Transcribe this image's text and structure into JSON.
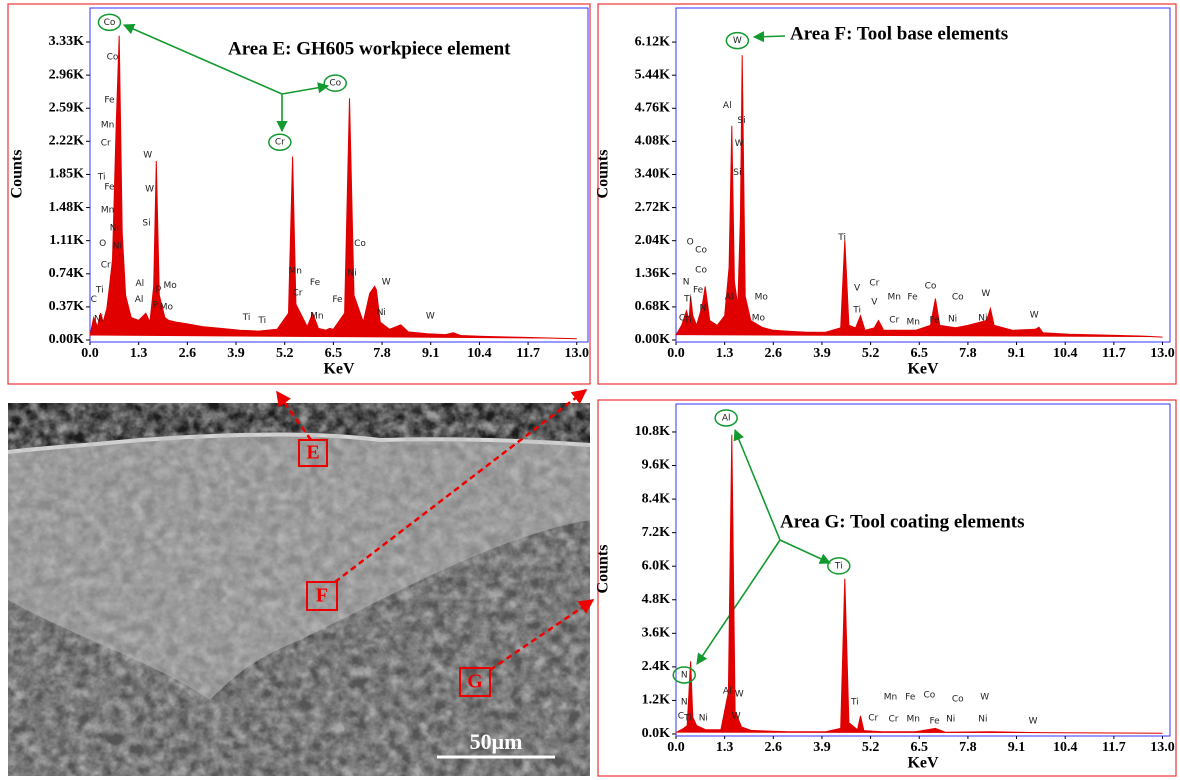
{
  "chart_data": [
    {
      "type": "area",
      "title": "Area E: GH605 workpiece element",
      "xlabel": "KeV",
      "ylabel": "Counts",
      "color": "#e00000",
      "xlim": [
        0,
        13.3
      ],
      "ylim": [
        0,
        3710
      ],
      "xticks": [
        {
          "value": 0,
          "label": "0.0"
        },
        1.3,
        2.6,
        3.9,
        5.2,
        6.5,
        7.8,
        9.1,
        10.4,
        11.7,
        {
          "value": 13,
          "label": "13.0"
        }
      ],
      "yticks": [
        {
          "value": 0,
          "label": "0.00K"
        },
        {
          "value": 370,
          "label": "0.37K"
        },
        {
          "value": 740,
          "label": "0.74K"
        },
        {
          "value": 1110,
          "label": "1.11K"
        },
        {
          "value": 1480,
          "label": "1.48K"
        },
        {
          "value": 1850,
          "label": "1.85K"
        },
        {
          "value": 2220,
          "label": "2.22K"
        },
        {
          "value": 2590,
          "label": "2.59K"
        },
        {
          "value": 2960,
          "label": "2.96K"
        },
        {
          "value": 3330,
          "label": "3.33K"
        }
      ],
      "x": [
        0,
        0.1,
        0.2,
        0.28,
        0.35,
        0.45,
        0.52,
        0.6,
        0.7,
        0.78,
        0.86,
        0.95,
        1.1,
        1.3,
        1.49,
        1.6,
        1.7,
        1.77,
        1.85,
        2.0,
        2.1,
        2.3,
        2.6,
        3.0,
        3.5,
        4.0,
        4.5,
        5.0,
        5.3,
        5.41,
        5.5,
        5.8,
        5.95,
        6.1,
        6.3,
        6.4,
        6.5,
        6.8,
        6.93,
        7.05,
        7.3,
        7.47,
        7.6,
        7.65,
        7.75,
        8.0,
        8.3,
        8.5,
        9.0,
        9.5,
        9.7,
        9.9,
        10.5,
        11.5,
        12.5,
        13.0
      ],
      "values": [
        50,
        250,
        150,
        300,
        200,
        350,
        600,
        900,
        2400,
        3400,
        1200,
        500,
        250,
        220,
        300,
        200,
        600,
        2000,
        500,
        250,
        220,
        200,
        180,
        150,
        130,
        110,
        100,
        120,
        300,
        2050,
        400,
        150,
        300,
        130,
        110,
        130,
        120,
        300,
        2700,
        500,
        200,
        520,
        600,
        560,
        200,
        120,
        170,
        90,
        70,
        60,
        80,
        50,
        40,
        30,
        20,
        15
      ],
      "annotations": [
        {
          "text": "Co",
          "x": 0.52,
          "y": 3550,
          "circled": true
        },
        {
          "text": "Co",
          "x": 0.6,
          "y": 3160
        },
        {
          "text": "Fe",
          "x": 0.52,
          "y": 2680
        },
        {
          "text": "Mn",
          "x": 0.47,
          "y": 2400
        },
        {
          "text": "Cr",
          "x": 0.42,
          "y": 2200
        },
        {
          "text": "Ti",
          "x": 0.31,
          "y": 1820
        },
        {
          "text": "Fe",
          "x": 0.52,
          "y": 1710
        },
        {
          "text": "Mn",
          "x": 0.47,
          "y": 1450
        },
        {
          "text": "Ni",
          "x": 0.65,
          "y": 1250
        },
        {
          "text": "O",
          "x": 0.34,
          "y": 1080
        },
        {
          "text": "Ni",
          "x": 0.73,
          "y": 1050
        },
        {
          "text": "Cr",
          "x": 0.42,
          "y": 840
        },
        {
          "text": "Ti",
          "x": 0.26,
          "y": 560
        },
        {
          "text": "C",
          "x": 0.1,
          "y": 450
        },
        {
          "text": "Ni",
          "x": 0.23,
          "y": 235
        },
        {
          "text": "Al",
          "x": 1.33,
          "y": 630
        },
        {
          "text": "Al",
          "x": 1.31,
          "y": 450
        },
        {
          "text": "W",
          "x": 1.54,
          "y": 2070
        },
        {
          "text": "W",
          "x": 1.59,
          "y": 1690
        },
        {
          "text": "Si",
          "x": 1.51,
          "y": 1310
        },
        {
          "text": "p",
          "x": 1.83,
          "y": 580
        },
        {
          "text": "Mo",
          "x": 2.14,
          "y": 610
        },
        {
          "text": "P",
          "x": 1.75,
          "y": 390
        },
        {
          "text": "Mo",
          "x": 2.04,
          "y": 370
        },
        {
          "text": "Ti",
          "x": 4.18,
          "y": 250
        },
        {
          "text": "Ti",
          "x": 4.6,
          "y": 220
        },
        {
          "text": "Mn",
          "x": 5.48,
          "y": 770
        },
        {
          "text": "Cr",
          "x": 5.54,
          "y": 525
        },
        {
          "text": "Fe",
          "x": 6.01,
          "y": 640
        },
        {
          "text": "Mn",
          "x": 6.06,
          "y": 270
        },
        {
          "text": "Fe",
          "x": 6.61,
          "y": 450
        },
        {
          "text": "Co",
          "x": 7.21,
          "y": 1080
        },
        {
          "text": "Ni",
          "x": 7.0,
          "y": 750
        },
        {
          "text": "W",
          "x": 7.91,
          "y": 650
        },
        {
          "text": "Ni",
          "x": 7.78,
          "y": 310
        },
        {
          "text": "W",
          "x": 9.09,
          "y": 270
        },
        {
          "text": "Cr",
          "x": 5.07,
          "y": 2210,
          "circled": true
        },
        {
          "text": "Co",
          "x": 6.55,
          "y": 2870,
          "circled": true
        }
      ]
    },
    {
      "type": "area",
      "title": "Area F: Tool base elements",
      "xlabel": "KeV",
      "ylabel": "Counts",
      "color": "#e00000",
      "xlim": [
        0,
        13.2
      ],
      "ylim": [
        0,
        6820
      ],
      "xticks": [
        {
          "value": 0,
          "label": "0.0"
        },
        1.3,
        2.6,
        3.9,
        5.2,
        6.5,
        7.8,
        9.1,
        10.4,
        11.7,
        {
          "value": 13,
          "label": "13.0"
        }
      ],
      "yticks": [
        {
          "value": 0,
          "label": "0.00K"
        },
        {
          "value": 680,
          "label": "0.68K"
        },
        {
          "value": 1360,
          "label": "1.36K"
        },
        {
          "value": 2040,
          "label": "2.04K"
        },
        {
          "value": 2720,
          "label": "2.72K"
        },
        {
          "value": 3400,
          "label": "3.40K"
        },
        {
          "value": 4080,
          "label": "4.08K"
        },
        {
          "value": 4760,
          "label": "4.76K"
        },
        {
          "value": 5440,
          "label": "5.44K"
        },
        {
          "value": 6120,
          "label": "6.12K"
        }
      ],
      "x": [
        0,
        0.15,
        0.28,
        0.35,
        0.39,
        0.45,
        0.55,
        0.7,
        0.78,
        0.9,
        1.1,
        1.3,
        1.42,
        1.49,
        1.56,
        1.65,
        1.72,
        1.77,
        1.85,
        2.0,
        2.3,
        2.6,
        3.0,
        3.5,
        4.0,
        4.4,
        4.51,
        4.62,
        4.8,
        4.93,
        5.05,
        5.3,
        5.41,
        5.55,
        5.9,
        6.4,
        6.8,
        6.93,
        7.05,
        7.47,
        7.8,
        8.3,
        8.4,
        8.5,
        9.0,
        9.6,
        9.7,
        9.8,
        10.5,
        11.5,
        12.5,
        13.0
      ],
      "values": [
        100,
        300,
        600,
        400,
        900,
        500,
        300,
        700,
        1100,
        400,
        300,
        500,
        1500,
        4400,
        1200,
        700,
        2500,
        5850,
        900,
        400,
        260,
        200,
        180,
        160,
        160,
        250,
        2050,
        300,
        250,
        500,
        200,
        250,
        400,
        200,
        200,
        200,
        300,
        850,
        300,
        250,
        300,
        400,
        650,
        300,
        200,
        220,
        260,
        150,
        120,
        100,
        80,
        60
      ],
      "annotations": [
        {
          "text": "W",
          "x": 1.64,
          "y": 6150,
          "circled": true
        },
        {
          "text": "Al",
          "x": 1.37,
          "y": 4820
        },
        {
          "text": "Si",
          "x": 1.75,
          "y": 4510
        },
        {
          "text": "W",
          "x": 1.69,
          "y": 4040
        },
        {
          "text": "Si",
          "x": 1.64,
          "y": 3440
        },
        {
          "text": "Ti",
          "x": 4.44,
          "y": 2110
        },
        {
          "text": "O",
          "x": 0.38,
          "y": 2010
        },
        {
          "text": "Co",
          "x": 0.67,
          "y": 1850
        },
        {
          "text": "Co",
          "x": 0.67,
          "y": 1440
        },
        {
          "text": "N",
          "x": 0.27,
          "y": 1190
        },
        {
          "text": "Fe",
          "x": 0.59,
          "y": 1030
        },
        {
          "text": "Ti",
          "x": 0.32,
          "y": 840
        },
        {
          "text": "Ni",
          "x": 0.75,
          "y": 660
        },
        {
          "text": "Ti",
          "x": 0.32,
          "y": 410
        },
        {
          "text": "C",
          "x": 0.16,
          "y": 450
        },
        {
          "text": "Al",
          "x": 1.42,
          "y": 880
        },
        {
          "text": "Mo",
          "x": 2.28,
          "y": 880
        },
        {
          "text": "Mo",
          "x": 2.2,
          "y": 450
        },
        {
          "text": "V",
          "x": 4.84,
          "y": 1070
        },
        {
          "text": "Ti",
          "x": 4.84,
          "y": 615
        },
        {
          "text": "Cr",
          "x": 5.3,
          "y": 1170
        },
        {
          "text": "V",
          "x": 5.3,
          "y": 780
        },
        {
          "text": "Mn",
          "x": 5.83,
          "y": 880
        },
        {
          "text": "Cr",
          "x": 5.83,
          "y": 410
        },
        {
          "text": "Fe",
          "x": 6.32,
          "y": 880
        },
        {
          "text": "Mn",
          "x": 6.34,
          "y": 370
        },
        {
          "text": "Co",
          "x": 6.8,
          "y": 1110
        },
        {
          "text": "Fe",
          "x": 6.91,
          "y": 410
        },
        {
          "text": "Co",
          "x": 7.53,
          "y": 880
        },
        {
          "text": "Ni",
          "x": 7.39,
          "y": 430
        },
        {
          "text": "W",
          "x": 8.28,
          "y": 960
        },
        {
          "text": "Ni",
          "x": 8.2,
          "y": 450
        },
        {
          "text": "W",
          "x": 9.57,
          "y": 510
        }
      ]
    },
    {
      "type": "area",
      "title": "Area G: Tool coating elements",
      "xlabel": "KeV",
      "ylabel": "Counts",
      "color": "#e00000",
      "xlim": [
        0,
        13.2
      ],
      "ylim": [
        0,
        11800
      ],
      "xticks": [
        {
          "value": 0,
          "label": "0.0"
        },
        1.3,
        2.6,
        3.9,
        5.2,
        6.5,
        7.8,
        9.1,
        10.4,
        11.7,
        {
          "value": 13,
          "label": "13.0"
        }
      ],
      "yticks": [
        {
          "value": 0,
          "label": "0.0K"
        },
        {
          "value": 1200,
          "label": "1.2K"
        },
        {
          "value": 2400,
          "label": "2.4K"
        },
        {
          "value": 3600,
          "label": "3.6K"
        },
        {
          "value": 4800,
          "label": "4.8K"
        },
        {
          "value": 6000,
          "label": "6.0K"
        },
        {
          "value": 7200,
          "label": "7.2K"
        },
        {
          "value": 8400,
          "label": "8.4K"
        },
        {
          "value": 9600,
          "label": "9.6K"
        },
        {
          "value": 10800,
          "label": "10.8K"
        }
      ],
      "x": [
        0,
        0.2,
        0.3,
        0.39,
        0.45,
        0.55,
        0.8,
        1.2,
        1.4,
        1.49,
        1.58,
        1.75,
        2.0,
        3.0,
        4.0,
        4.4,
        4.51,
        4.62,
        4.85,
        4.93,
        5.02,
        5.5,
        6.4,
        6.93,
        7.2,
        8.4,
        9.7,
        11,
        13
      ],
      "values": [
        50,
        200,
        300,
        2600,
        600,
        300,
        150,
        150,
        1500,
        10700,
        800,
        250,
        130,
        80,
        80,
        200,
        5550,
        400,
        150,
        650,
        120,
        80,
        80,
        200,
        60,
        80,
        50,
        40,
        30
      ],
      "annotations": [
        {
          "text": "Al",
          "x": 1.34,
          "y": 11300,
          "circled": true
        },
        {
          "text": "N",
          "x": 0.22,
          "y": 2110,
          "circled": true
        },
        {
          "text": "Ti",
          "x": 4.35,
          "y": 6010,
          "circled": true
        },
        {
          "text": "N",
          "x": 0.22,
          "y": 1140
        },
        {
          "text": "C",
          "x": 0.13,
          "y": 640
        },
        {
          "text": "Ti",
          "x": 0.32,
          "y": 570
        },
        {
          "text": "Ni",
          "x": 0.73,
          "y": 570
        },
        {
          "text": "Al",
          "x": 1.37,
          "y": 1540
        },
        {
          "text": "W",
          "x": 1.69,
          "y": 1430
        },
        {
          "text": "W",
          "x": 1.61,
          "y": 640
        },
        {
          "text": "Ti",
          "x": 4.78,
          "y": 1140
        },
        {
          "text": "Cr",
          "x": 5.27,
          "y": 570
        },
        {
          "text": "Mn",
          "x": 5.73,
          "y": 1320
        },
        {
          "text": "Cr",
          "x": 5.81,
          "y": 540
        },
        {
          "text": "Fe",
          "x": 6.26,
          "y": 1320
        },
        {
          "text": "Mn",
          "x": 6.34,
          "y": 540
        },
        {
          "text": "Co",
          "x": 6.77,
          "y": 1390
        },
        {
          "text": "Fe",
          "x": 6.91,
          "y": 460
        },
        {
          "text": "Co",
          "x": 7.53,
          "y": 1250
        },
        {
          "text": "Ni",
          "x": 7.34,
          "y": 540
        },
        {
          "text": "W",
          "x": 8.25,
          "y": 1320
        },
        {
          "text": "Ni",
          "x": 8.2,
          "y": 540
        },
        {
          "text": "W",
          "x": 9.54,
          "y": 460
        }
      ]
    }
  ],
  "image": {
    "labels": [
      "E",
      "F",
      "G"
    ],
    "scale_bar": "50μm"
  }
}
